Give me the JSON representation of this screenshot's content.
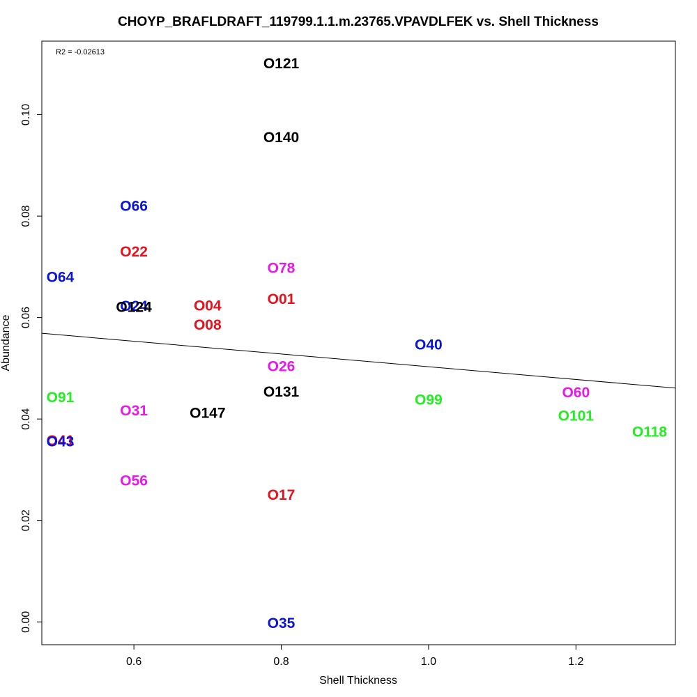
{
  "chart_data": {
    "type": "scatter",
    "title": "CHOYP_BRAFLDRAFT_119799.1.1.m.23765.VPAVDLFEK vs. Shell Thickness",
    "xlabel": "Shell Thickness",
    "ylabel": "Abundance",
    "annotation": "R2 = -0.02613",
    "xlim": [
      0.475,
      1.335
    ],
    "ylim": [
      -0.0045,
      0.1145
    ],
    "x_ticks": [
      0.6,
      0.8,
      1.0,
      1.2
    ],
    "x_tick_labels": [
      "0.6",
      "0.8",
      "1.0",
      "1.2"
    ],
    "y_ticks": [
      0.0,
      0.02,
      0.04,
      0.06,
      0.08,
      0.1
    ],
    "y_tick_labels": [
      "0.00",
      "0.02",
      "0.04",
      "0.06",
      "0.08",
      "0.10"
    ],
    "grid": false,
    "legend": "none",
    "colors": {
      "black": "#000000",
      "red": "#e8101c",
      "blue": "#0a14d8",
      "magenta": "#e818e8",
      "green": "#22ee22"
    },
    "regression_line": {
      "x": [
        0.475,
        1.335
      ],
      "y": [
        0.0569,
        0.0461
      ]
    },
    "points": [
      {
        "label": "O121",
        "x": 0.8,
        "y": 0.11,
        "color": "black"
      },
      {
        "label": "O140",
        "x": 0.8,
        "y": 0.0955,
        "color": "black"
      },
      {
        "label": "O66",
        "x": 0.6,
        "y": 0.0819,
        "color": "blue"
      },
      {
        "label": "O22",
        "x": 0.6,
        "y": 0.0729,
        "color": "red"
      },
      {
        "label": "O78",
        "x": 0.8,
        "y": 0.0697,
        "color": "magenta"
      },
      {
        "label": "O64",
        "x": 0.5,
        "y": 0.0679,
        "color": "blue"
      },
      {
        "label": "O01",
        "x": 0.8,
        "y": 0.0636,
        "color": "red"
      },
      {
        "label": "O04",
        "x": 0.7,
        "y": 0.0623,
        "color": "red"
      },
      {
        "label": "O24",
        "x": 0.6,
        "y": 0.0622,
        "color": "blue"
      },
      {
        "label": "O124",
        "x": 0.6,
        "y": 0.062,
        "color": "black"
      },
      {
        "label": "O08",
        "x": 0.7,
        "y": 0.0585,
        "color": "red"
      },
      {
        "label": "O40",
        "x": 1.0,
        "y": 0.0546,
        "color": "blue"
      },
      {
        "label": "O26",
        "x": 0.8,
        "y": 0.0503,
        "color": "magenta"
      },
      {
        "label": "O60",
        "x": 1.2,
        "y": 0.0452,
        "color": "magenta"
      },
      {
        "label": "O131",
        "x": 0.8,
        "y": 0.0453,
        "color": "black"
      },
      {
        "label": "O91",
        "x": 0.5,
        "y": 0.0442,
        "color": "green"
      },
      {
        "label": "O99",
        "x": 1.0,
        "y": 0.0437,
        "color": "green"
      },
      {
        "label": "O31",
        "x": 0.6,
        "y": 0.0416,
        "color": "magenta"
      },
      {
        "label": "O147",
        "x": 0.7,
        "y": 0.0411,
        "color": "black"
      },
      {
        "label": "O101",
        "x": 1.2,
        "y": 0.0406,
        "color": "green"
      },
      {
        "label": "O118",
        "x": 1.3,
        "y": 0.0374,
        "color": "green"
      },
      {
        "label": "O41",
        "x": 0.5,
        "y": 0.0357,
        "color": "red"
      },
      {
        "label": "O43",
        "x": 0.5,
        "y": 0.0355,
        "color": "blue"
      },
      {
        "label": "O56",
        "x": 0.6,
        "y": 0.0278,
        "color": "magenta"
      },
      {
        "label": "O17",
        "x": 0.8,
        "y": 0.025,
        "color": "red"
      },
      {
        "label": "O35",
        "x": 0.8,
        "y": -0.0003,
        "color": "blue"
      }
    ]
  }
}
